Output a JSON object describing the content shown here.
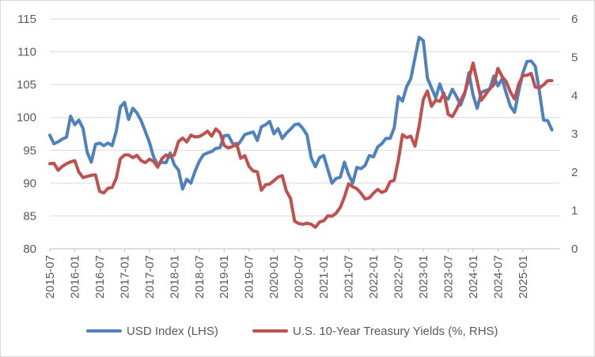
{
  "chart_data": {
    "type": "line",
    "title": "",
    "legend": {
      "position": "bottom"
    },
    "grid": {
      "y_major": true,
      "x_major": false
    },
    "x_tick_labels": [
      "2015-07",
      "2016-01",
      "2016-07",
      "2017-01",
      "2017-07",
      "2018-01",
      "2018-07",
      "2019-01",
      "2019-07",
      "2020-01",
      "2020-07",
      "2021-01",
      "2021-07",
      "2022-01",
      "2022-07",
      "2023-01",
      "2023-07",
      "2024-01",
      "2024-07",
      "2025-01"
    ],
    "y_left": {
      "min": 80,
      "max": 115,
      "step": 5,
      "tick_labels": [
        "80",
        "85",
        "90",
        "95",
        "100",
        "105",
        "110",
        "115"
      ]
    },
    "y_right": {
      "min": 0,
      "max": 6,
      "step": 1,
      "tick_labels": [
        "0",
        "1",
        "2",
        "3",
        "4",
        "5",
        "6"
      ]
    },
    "x_range": [
      "2015-07",
      "2025-10"
    ],
    "series": [
      {
        "name": "USD Index (LHS)",
        "axis": "left",
        "color": "#4f81bd",
        "points": [
          [
            "2015-07",
            97.3
          ],
          [
            "2015-08",
            96.0
          ],
          [
            "2015-09",
            96.3
          ],
          [
            "2015-10",
            96.7
          ],
          [
            "2015-11",
            97.0
          ],
          [
            "2015-12",
            100.2
          ],
          [
            "2016-01",
            98.9
          ],
          [
            "2016-02",
            99.6
          ],
          [
            "2016-03",
            98.3
          ],
          [
            "2016-04",
            94.7
          ],
          [
            "2016-05",
            93.2
          ],
          [
            "2016-06",
            95.9
          ],
          [
            "2016-07",
            96.1
          ],
          [
            "2016-08",
            95.7
          ],
          [
            "2016-09",
            96.1
          ],
          [
            "2016-10",
            95.7
          ],
          [
            "2016-11",
            97.9
          ],
          [
            "2016-12",
            101.6
          ],
          [
            "2017-01",
            102.3
          ],
          [
            "2017-02",
            99.7
          ],
          [
            "2017-03",
            101.4
          ],
          [
            "2017-04",
            100.7
          ],
          [
            "2017-05",
            99.5
          ],
          [
            "2017-06",
            97.9
          ],
          [
            "2017-07",
            96.2
          ],
          [
            "2017-08",
            94.0
          ],
          [
            "2017-09",
            92.8
          ],
          [
            "2017-10",
            93.2
          ],
          [
            "2017-11",
            93.1
          ],
          [
            "2017-12",
            94.6
          ],
          [
            "2018-01",
            92.8
          ],
          [
            "2018-02",
            92.0
          ],
          [
            "2018-03",
            89.1
          ],
          [
            "2018-04",
            90.6
          ],
          [
            "2018-05",
            90.0
          ],
          [
            "2018-06",
            91.8
          ],
          [
            "2018-07",
            93.3
          ],
          [
            "2018-08",
            94.3
          ],
          [
            "2018-09",
            94.6
          ],
          [
            "2018-10",
            94.8
          ],
          [
            "2018-11",
            95.3
          ],
          [
            "2018-12",
            95.4
          ],
          [
            "2019-01",
            97.2
          ],
          [
            "2019-02",
            97.3
          ],
          [
            "2019-03",
            96.1
          ],
          [
            "2019-04",
            95.6
          ],
          [
            "2019-05",
            96.4
          ],
          [
            "2019-06",
            97.4
          ],
          [
            "2019-07",
            97.6
          ],
          [
            "2019-08",
            97.8
          ],
          [
            "2019-09",
            96.5
          ],
          [
            "2019-10",
            98.6
          ],
          [
            "2019-11",
            98.9
          ],
          [
            "2019-12",
            99.4
          ],
          [
            "2020-01",
            97.5
          ],
          [
            "2020-02",
            98.3
          ],
          [
            "2020-03",
            96.8
          ],
          [
            "2020-04",
            97.6
          ],
          [
            "2020-05",
            98.2
          ],
          [
            "2020-06",
            98.9
          ],
          [
            "2020-07",
            99.0
          ],
          [
            "2020-08",
            98.3
          ],
          [
            "2020-09",
            97.3
          ],
          [
            "2020-10",
            93.8
          ],
          [
            "2020-11",
            92.5
          ],
          [
            "2020-12",
            93.9
          ],
          [
            "2021-01",
            94.2
          ],
          [
            "2021-02",
            92.1
          ],
          [
            "2021-03",
            90.0
          ],
          [
            "2021-04",
            90.7
          ],
          [
            "2021-05",
            90.9
          ],
          [
            "2021-06",
            93.2
          ],
          [
            "2021-07",
            91.3
          ],
          [
            "2021-08",
            90.0
          ],
          [
            "2021-09",
            92.4
          ],
          [
            "2021-10",
            92.2
          ],
          [
            "2021-11",
            92.7
          ],
          [
            "2021-12",
            94.2
          ],
          [
            "2022-01",
            94.0
          ],
          [
            "2022-02",
            95.5
          ],
          [
            "2022-03",
            96.0
          ],
          [
            "2022-04",
            96.8
          ],
          [
            "2022-05",
            96.8
          ],
          [
            "2022-06",
            98.4
          ],
          [
            "2022-07",
            103.2
          ],
          [
            "2022-08",
            102.5
          ],
          [
            "2022-09",
            104.7
          ],
          [
            "2022-10",
            105.9
          ],
          [
            "2022-11",
            109.1
          ],
          [
            "2022-12",
            112.2
          ],
          [
            "2023-01",
            111.7
          ],
          [
            "2023-02",
            106.0
          ],
          [
            "2023-03",
            104.5
          ],
          [
            "2023-04",
            103.0
          ],
          [
            "2023-05",
            105.1
          ],
          [
            "2023-06",
            103.2
          ],
          [
            "2023-07",
            102.8
          ],
          [
            "2023-08",
            104.3
          ],
          [
            "2023-09",
            103.2
          ],
          [
            "2023-10",
            101.9
          ],
          [
            "2023-11",
            103.6
          ],
          [
            "2023-12",
            106.8
          ],
          [
            "2024-01",
            103.4
          ],
          [
            "2024-02",
            101.4
          ],
          [
            "2024-03",
            103.8
          ],
          [
            "2024-04",
            104.1
          ],
          [
            "2024-05",
            104.3
          ],
          [
            "2024-06",
            106.3
          ],
          [
            "2024-07",
            104.8
          ],
          [
            "2024-08",
            105.9
          ],
          [
            "2024-09",
            103.7
          ],
          [
            "2024-10",
            101.7
          ],
          [
            "2024-11",
            100.8
          ],
          [
            "2024-12",
            104.0
          ],
          [
            "2025-01",
            106.8
          ],
          [
            "2025-02",
            108.5
          ],
          [
            "2025-03",
            108.6
          ],
          [
            "2025-04",
            107.8
          ],
          [
            "2025-05",
            103.9
          ],
          [
            "2025-06",
            99.6
          ],
          [
            "2025-07",
            99.5
          ],
          [
            "2025-08",
            98.1
          ]
        ]
      },
      {
        "name": "U.S. 10-Year Treasury Yields (%, RHS)",
        "axis": "right",
        "color": "#c0504d",
        "points": [
          [
            "2015-07",
            2.22
          ],
          [
            "2015-08",
            2.23
          ],
          [
            "2015-09",
            2.05
          ],
          [
            "2015-10",
            2.15
          ],
          [
            "2015-11",
            2.22
          ],
          [
            "2015-12",
            2.27
          ],
          [
            "2016-01",
            2.3
          ],
          [
            "2016-02",
            2.0
          ],
          [
            "2016-03",
            1.86
          ],
          [
            "2016-04",
            1.89
          ],
          [
            "2016-05",
            1.92
          ],
          [
            "2016-06",
            1.93
          ],
          [
            "2016-07",
            1.5
          ],
          [
            "2016-08",
            1.46
          ],
          [
            "2016-09",
            1.58
          ],
          [
            "2016-10",
            1.6
          ],
          [
            "2016-11",
            1.84
          ],
          [
            "2016-12",
            2.35
          ],
          [
            "2017-01",
            2.45
          ],
          [
            "2017-02",
            2.45
          ],
          [
            "2017-03",
            2.38
          ],
          [
            "2017-04",
            2.44
          ],
          [
            "2017-05",
            2.3
          ],
          [
            "2017-06",
            2.25
          ],
          [
            "2017-07",
            2.34
          ],
          [
            "2017-08",
            2.28
          ],
          [
            "2017-09",
            2.13
          ],
          [
            "2017-10",
            2.35
          ],
          [
            "2017-11",
            2.45
          ],
          [
            "2017-12",
            2.4
          ],
          [
            "2018-01",
            2.45
          ],
          [
            "2018-02",
            2.8
          ],
          [
            "2018-03",
            2.89
          ],
          [
            "2018-04",
            2.79
          ],
          [
            "2018-05",
            2.97
          ],
          [
            "2018-06",
            2.92
          ],
          [
            "2018-07",
            2.93
          ],
          [
            "2018-08",
            2.99
          ],
          [
            "2018-09",
            3.07
          ],
          [
            "2018-10",
            2.94
          ],
          [
            "2018-11",
            3.13
          ],
          [
            "2018-12",
            3.03
          ],
          [
            "2019-01",
            2.7
          ],
          [
            "2019-02",
            2.63
          ],
          [
            "2019-03",
            2.67
          ],
          [
            "2019-04",
            2.75
          ],
          [
            "2019-05",
            2.36
          ],
          [
            "2019-06",
            2.43
          ],
          [
            "2019-07",
            2.15
          ],
          [
            "2019-08",
            2.03
          ],
          [
            "2019-09",
            2.01
          ],
          [
            "2019-10",
            1.53
          ],
          [
            "2019-11",
            1.67
          ],
          [
            "2019-12",
            1.69
          ],
          [
            "2020-01",
            1.78
          ],
          [
            "2020-02",
            1.87
          ],
          [
            "2020-03",
            1.91
          ],
          [
            "2020-04",
            1.51
          ],
          [
            "2020-05",
            1.32
          ],
          [
            "2020-06",
            0.72
          ],
          [
            "2020-07",
            0.66
          ],
          [
            "2020-08",
            0.64
          ],
          [
            "2020-09",
            0.67
          ],
          [
            "2020-10",
            0.64
          ],
          [
            "2020-11",
            0.56
          ],
          [
            "2020-12",
            0.7
          ],
          [
            "2021-01",
            0.73
          ],
          [
            "2021-02",
            0.86
          ],
          [
            "2021-03",
            0.85
          ],
          [
            "2021-04",
            0.93
          ],
          [
            "2021-05",
            1.08
          ],
          [
            "2021-06",
            1.35
          ],
          [
            "2021-07",
            1.7
          ],
          [
            "2021-08",
            1.62
          ],
          [
            "2021-09",
            1.57
          ],
          [
            "2021-10",
            1.45
          ],
          [
            "2021-11",
            1.3
          ],
          [
            "2021-12",
            1.33
          ],
          [
            "2022-01",
            1.45
          ],
          [
            "2022-02",
            1.55
          ],
          [
            "2022-03",
            1.47
          ],
          [
            "2022-04",
            1.52
          ],
          [
            "2022-05",
            1.75
          ],
          [
            "2022-06",
            1.79
          ],
          [
            "2022-07",
            2.32
          ],
          [
            "2022-08",
            2.98
          ],
          [
            "2022-09",
            2.9
          ],
          [
            "2022-10",
            2.94
          ],
          [
            "2022-11",
            2.68
          ],
          [
            "2022-12",
            3.2
          ],
          [
            "2023-01",
            3.9
          ],
          [
            "2023-02",
            4.12
          ],
          [
            "2023-03",
            3.72
          ],
          [
            "2023-04",
            3.88
          ],
          [
            "2023-05",
            3.85
          ],
          [
            "2023-06",
            4.06
          ],
          [
            "2023-07",
            3.51
          ],
          [
            "2023-08",
            3.45
          ],
          [
            "2023-09",
            3.64
          ],
          [
            "2023-10",
            3.86
          ],
          [
            "2023-11",
            4.08
          ],
          [
            "2023-12",
            4.43
          ],
          [
            "2024-01",
            4.85
          ],
          [
            "2024-02",
            4.37
          ],
          [
            "2024-03",
            3.88
          ],
          [
            "2024-04",
            4.02
          ],
          [
            "2024-05",
            4.18
          ],
          [
            "2024-06",
            4.28
          ],
          [
            "2024-07",
            4.71
          ],
          [
            "2024-08",
            4.5
          ],
          [
            "2024-09",
            4.36
          ],
          [
            "2024-10",
            4.09
          ],
          [
            "2024-11",
            3.91
          ],
          [
            "2024-12",
            4.3
          ],
          [
            "2025-01",
            4.52
          ],
          [
            "2025-02",
            4.53
          ],
          [
            "2025-03",
            4.58
          ],
          [
            "2025-04",
            4.22
          ],
          [
            "2025-05",
            4.2
          ],
          [
            "2025-06",
            4.28
          ],
          [
            "2025-07",
            4.39
          ],
          [
            "2025-08",
            4.39
          ]
        ]
      }
    ]
  }
}
